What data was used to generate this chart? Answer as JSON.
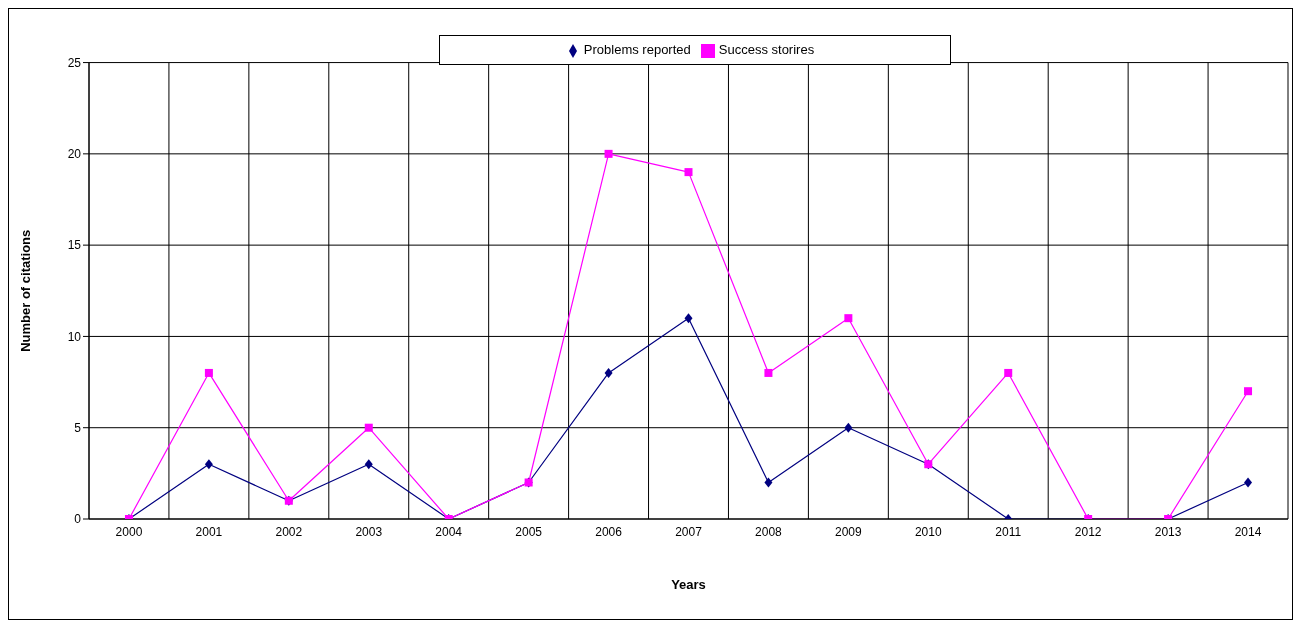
{
  "chart_data": {
    "type": "line",
    "xlabel": "Years",
    "ylabel": "Number of citations",
    "categories": [
      "2000",
      "2001",
      "2002",
      "2003",
      "2004",
      "2005",
      "2006",
      "2007",
      "2008",
      "2009",
      "2010",
      "2011",
      "2012",
      "2013",
      "2014"
    ],
    "series": [
      {
        "name": "Problems reported",
        "color": "#000080",
        "marker": "diamond",
        "values": [
          0,
          3,
          1,
          3,
          0,
          2,
          8,
          11,
          2,
          5,
          3,
          0,
          0,
          0,
          2
        ]
      },
      {
        "name": "Success storires",
        "color": "#ff00ff",
        "marker": "square",
        "values": [
          0,
          8,
          1,
          5,
          0,
          2,
          20,
          19,
          8,
          11,
          3,
          8,
          0,
          0,
          7
        ]
      }
    ],
    "ylim": [
      0,
      25
    ],
    "yticks": [
      0,
      5,
      10,
      15,
      20,
      25
    ],
    "grid": true,
    "legend": "top"
  }
}
